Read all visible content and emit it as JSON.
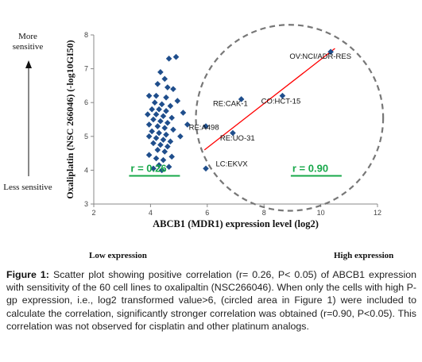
{
  "side_labels": {
    "more_sensitive": "More sensitive",
    "less_sensitive": "Less sensitive"
  },
  "expression": {
    "low": "Low expression",
    "high": "High expression"
  },
  "caption": {
    "lead": "Figure 1:",
    "text": "Scatter plot showing positive correlation (r= 0.26, P< 0.05) of ABCB1 expression with sensitivity of the 60 cell lines to oxalipaltin (NSC266046). When only the cells with high P-gp expression, i.e., log2 transformed value>6, (circled area in Figure 1) were included to calculate the correlation, significantly stronger correlation was obtained (r=0.90, P<0.05). This correlation was not observed for cisplatin and other platinum analogs."
  },
  "chart_data": {
    "type": "scatter",
    "xlabel": "ABCB1 (MDR1) expression level (log2)",
    "ylabel": "Oxaliplatin (NSC 266046) (-log10GI50)",
    "xlim": [
      2,
      12
    ],
    "ylim": [
      3,
      8
    ],
    "x_ticks": [
      2,
      4,
      6,
      8,
      10,
      12
    ],
    "y_ticks": [
      3,
      4,
      5,
      6,
      7,
      8
    ],
    "grid": false,
    "marker_color": "#1f4e8c",
    "trendline_color": "#ff0000",
    "circle_color": "#777777",
    "stat_color": "#18a84a",
    "stats": [
      {
        "text": "r = 0.26",
        "x": 3.3,
        "y": 3.95
      },
      {
        "text": "r = 0.90",
        "x": 9.0,
        "y": 3.95
      }
    ],
    "trendline": {
      "x": [
        5.9,
        10.5
      ],
      "y": [
        4.6,
        7.6
      ]
    },
    "circle": {
      "cx": 8.9,
      "cy": 5.55,
      "rx": 3.3,
      "ry": 2.75
    },
    "annotations": [
      {
        "text": "OV:NCI/ADR-RES",
        "x": 10.35,
        "y": 7.5,
        "label_x": 8.9,
        "label_y": 7.3
      },
      {
        "text": "RE:CAK-1",
        "x": 7.2,
        "y": 6.1,
        "label_x": 6.2,
        "label_y": 5.9
      },
      {
        "text": "CO:HCT-15",
        "x": 8.65,
        "y": 6.2,
        "label_x": 7.9,
        "label_y": 5.97
      },
      {
        "text": "RE:A498",
        "x": 5.95,
        "y": 5.3,
        "label_x": 5.35,
        "label_y": 5.2
      },
      {
        "text": "RE:UO-31",
        "x": 6.9,
        "y": 5.1,
        "label_x": 6.45,
        "label_y": 4.88
      },
      {
        "text": "LC:EKVX",
        "x": 5.95,
        "y": 4.05,
        "label_x": 6.3,
        "label_y": 4.11
      }
    ],
    "points": [
      [
        4.9,
        7.35
      ],
      [
        4.65,
        7.3
      ],
      [
        4.35,
        6.9
      ],
      [
        4.5,
        6.7
      ],
      [
        4.25,
        6.55
      ],
      [
        4.6,
        6.45
      ],
      [
        4.8,
        6.4
      ],
      [
        3.95,
        6.2
      ],
      [
        4.2,
        6.2
      ],
      [
        4.55,
        6.15
      ],
      [
        4.95,
        6.05
      ],
      [
        4.15,
        6.0
      ],
      [
        4.4,
        5.95
      ],
      [
        4.7,
        5.9
      ],
      [
        4.05,
        5.8
      ],
      [
        4.3,
        5.8
      ],
      [
        4.55,
        5.75
      ],
      [
        5.15,
        5.7
      ],
      [
        3.9,
        5.65
      ],
      [
        4.2,
        5.65
      ],
      [
        4.45,
        5.6
      ],
      [
        4.75,
        5.55
      ],
      [
        4.1,
        5.5
      ],
      [
        4.35,
        5.45
      ],
      [
        4.6,
        5.4
      ],
      [
        5.3,
        5.35
      ],
      [
        3.95,
        5.35
      ],
      [
        4.25,
        5.3
      ],
      [
        4.5,
        5.25
      ],
      [
        4.8,
        5.2
      ],
      [
        4.05,
        5.15
      ],
      [
        4.3,
        5.1
      ],
      [
        4.55,
        5.05
      ],
      [
        5.05,
        5.0
      ],
      [
        3.95,
        5.0
      ],
      [
        4.2,
        4.95
      ],
      [
        4.45,
        4.9
      ],
      [
        4.7,
        4.85
      ],
      [
        4.1,
        4.8
      ],
      [
        4.35,
        4.75
      ],
      [
        4.6,
        4.7
      ],
      [
        4.25,
        4.6
      ],
      [
        4.5,
        4.55
      ],
      [
        3.95,
        4.45
      ],
      [
        4.75,
        4.4
      ],
      [
        4.2,
        4.35
      ],
      [
        4.45,
        4.3
      ],
      [
        4.3,
        4.15
      ],
      [
        4.1,
        4.05
      ],
      [
        4.4,
        4.0
      ],
      [
        4.65,
        4.1
      ],
      [
        10.35,
        7.5
      ],
      [
        7.2,
        6.1
      ],
      [
        8.65,
        6.2
      ],
      [
        5.95,
        5.3
      ],
      [
        6.9,
        5.1
      ],
      [
        5.95,
        4.05
      ]
    ]
  }
}
